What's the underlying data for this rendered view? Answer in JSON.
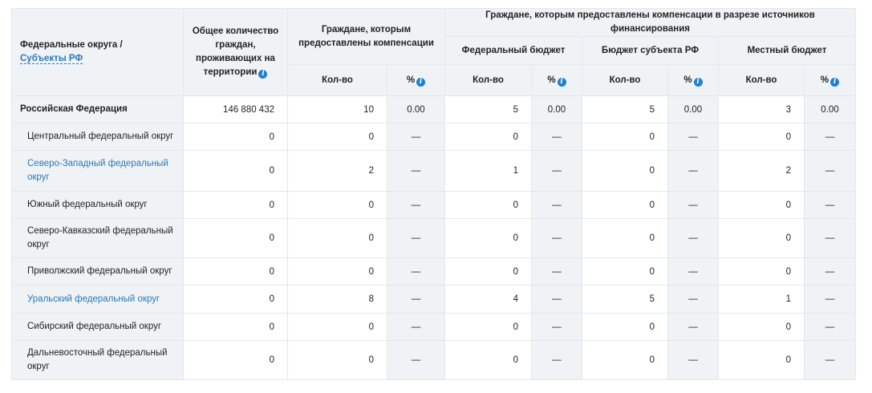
{
  "header": {
    "region_label": "Федеральные округа /",
    "region_link": "Субъекты РФ",
    "total_label": "Общее количество граждан, проживающих на территории",
    "given_label": "Граждане, которым предоставлены компенсации",
    "sources_label": "Граждане, которым предоставлены компенсации в разрезе источников финансирования",
    "federal": "Федеральный бюджет",
    "subject": "Бюджет субъекта РФ",
    "local": "Местный бюджет",
    "qty": "Кол-во",
    "pct": "%"
  },
  "accent_color": "#2a7ab8",
  "rows": [
    {
      "name": "Российская Федерация",
      "total": "146 880 432",
      "v": [
        "10",
        "0.00",
        "5",
        "0.00",
        "5",
        "0.00",
        "3",
        "0.00"
      ]
    },
    {
      "name": "Центральный федеральный округ",
      "total": "0",
      "v": [
        "0",
        "—",
        "0",
        "—",
        "0",
        "—",
        "0",
        "—"
      ]
    },
    {
      "name": "Северо-Западный федеральный округ",
      "link": true,
      "total": "0",
      "v": [
        "2",
        "—",
        "1",
        "—",
        "0",
        "—",
        "2",
        "—"
      ]
    },
    {
      "name": "Южный федеральный округ",
      "total": "0",
      "v": [
        "0",
        "—",
        "0",
        "—",
        "0",
        "—",
        "0",
        "—"
      ]
    },
    {
      "name": "Северо-Кавказский федеральный округ",
      "total": "0",
      "v": [
        "0",
        "—",
        "0",
        "—",
        "0",
        "—",
        "0",
        "—"
      ]
    },
    {
      "name": "Приволжский федеральный округ",
      "total": "0",
      "v": [
        "0",
        "—",
        "0",
        "—",
        "0",
        "—",
        "0",
        "—"
      ]
    },
    {
      "name": "Уральский федеральный округ",
      "link": true,
      "total": "0",
      "v": [
        "8",
        "—",
        "4",
        "—",
        "5",
        "—",
        "1",
        "—"
      ]
    },
    {
      "name": "Сибирский федеральный округ",
      "total": "0",
      "v": [
        "0",
        "—",
        "0",
        "—",
        "0",
        "—",
        "0",
        "—"
      ]
    },
    {
      "name": "Дальневосточный федеральный округ",
      "total": "0",
      "v": [
        "0",
        "—",
        "0",
        "—",
        "0",
        "—",
        "0",
        "—"
      ]
    }
  ]
}
